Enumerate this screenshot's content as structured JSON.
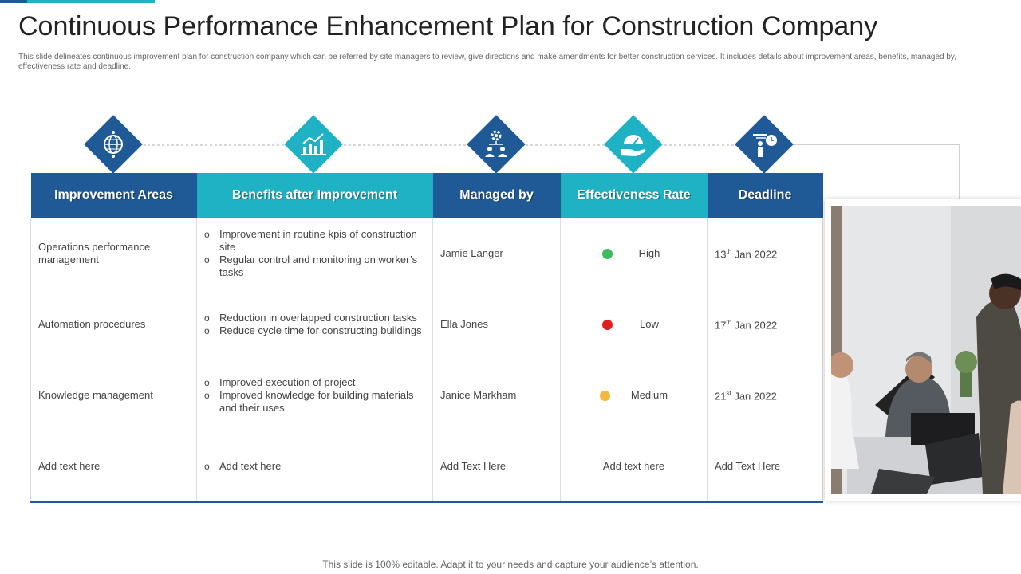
{
  "title": "Continuous Performance Enhancement Plan for Construction Company",
  "subtitle": "This slide delineates continuous improvement plan for construction company which can be referred by site managers to review, give directions and make amendments  for better construction services. It includes details about improvement areas, benefits, managed by, effectiveness rate and deadline.",
  "colors": {
    "dark": "#1f5a96",
    "teal": "#1fb2c4",
    "high": "#3dbb5e",
    "low": "#e02020",
    "medium": "#f4b73a"
  },
  "icons": [
    "globe-icon",
    "growth-chart-icon",
    "team-gear-icon",
    "hand-gauge-icon",
    "presenter-clock-icon"
  ],
  "headers": [
    "Improvement Areas",
    "Benefits after Improvement",
    "Managed by",
    "Effectiveness  Rate",
    "Deadline"
  ],
  "rows": [
    {
      "area": "Operations performance  management",
      "benefits": [
        "Improvement  in routine kpis of construction site",
        "Regular control and monitoring on worker’s tasks"
      ],
      "manager": "Jamie Langer",
      "effectiveness": "High",
      "deadline": {
        "day": "13",
        "suffix": "th",
        "rest": " Jan 2022"
      }
    },
    {
      "area": "Automation procedures",
      "benefits": [
        "Reduction in overlapped construction tasks",
        "Reduce cycle time for constructing buildings"
      ],
      "manager": "Ella Jones",
      "effectiveness": "Low",
      "deadline": {
        "day": "17",
        "suffix": "th",
        "rest": " Jan 2022"
      }
    },
    {
      "area": "Knowledge management",
      "benefits": [
        "Improved  execution of project",
        "Improved  knowledge for building materials and their uses"
      ],
      "manager": "Janice Markham",
      "effectiveness": "Medium",
      "deadline": {
        "day": "21",
        "suffix": "st",
        "rest": " Jan 2022"
      }
    },
    {
      "area": "Add text here",
      "benefits": [
        "Add text here"
      ],
      "manager": "Add Text Here",
      "effectiveness": "Add text here",
      "deadline_text": "Add Text Here"
    }
  ],
  "footer": "This slide is 100% editable. Adapt it to your needs and capture your audience’s attention."
}
